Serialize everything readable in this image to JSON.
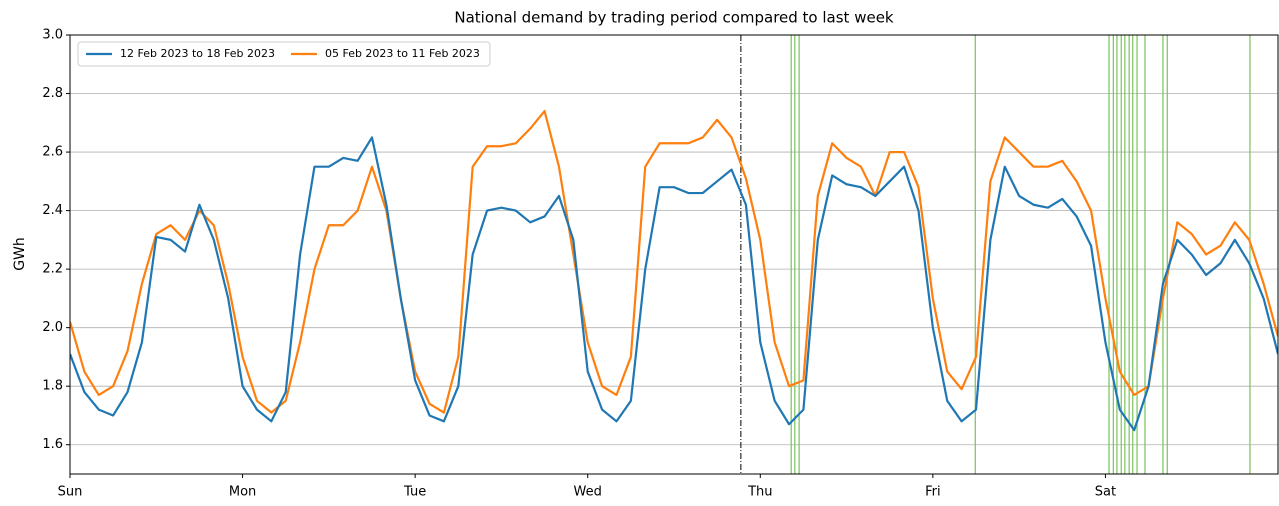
{
  "chart_data": {
    "type": "line",
    "title": "National demand by trading period compared to last week",
    "y_label": "GWh",
    "xlim": [
      0,
      168
    ],
    "xticks": [
      {
        "value": 0,
        "label": "Sun"
      },
      {
        "value": 24,
        "label": "Mon"
      },
      {
        "value": 48,
        "label": "Tue"
      },
      {
        "value": 72,
        "label": "Wed"
      },
      {
        "value": 96,
        "label": "Thu"
      },
      {
        "value": 120,
        "label": "Fri"
      },
      {
        "value": 144,
        "label": "Sat"
      }
    ],
    "ylim": [
      1.5,
      3.0
    ],
    "yticks": [
      1.6,
      1.8,
      {
        "value": 2.0,
        "label": "2.0"
      },
      2.2,
      2.4,
      2.6,
      2.8,
      {
        "value": 3.0,
        "label": "3.0"
      }
    ],
    "grid": true,
    "legend": "upper left",
    "x": [
      0,
      2,
      4,
      6,
      8,
      10,
      12,
      14,
      16,
      18,
      20,
      22,
      24,
      26,
      28,
      30,
      32,
      34,
      36,
      38,
      40,
      42,
      44,
      46,
      48,
      50,
      52,
      54,
      56,
      58,
      60,
      62,
      64,
      66,
      68,
      70,
      72,
      74,
      76,
      78,
      80,
      82,
      84,
      86,
      88,
      90,
      92,
      94,
      96,
      98,
      100,
      102,
      104,
      106,
      108,
      110,
      112,
      114,
      116,
      118,
      120,
      122,
      124,
      126,
      128,
      130,
      132,
      134,
      136,
      138,
      140,
      142,
      144,
      146,
      148,
      150,
      152,
      154,
      156,
      158,
      160,
      162,
      164,
      166,
      168
    ],
    "series": [
      {
        "name": "12 Feb 2023 to 18 Feb 2023",
        "color": "#1f77b4",
        "values": [
          1.91,
          1.78,
          1.72,
          1.7,
          1.78,
          1.95,
          2.31,
          2.3,
          2.26,
          2.42,
          2.3,
          2.1,
          1.8,
          1.72,
          1.68,
          1.78,
          2.25,
          2.55,
          2.55,
          2.58,
          2.57,
          2.65,
          2.42,
          2.1,
          1.82,
          1.7,
          1.68,
          1.8,
          2.25,
          2.4,
          2.41,
          2.4,
          2.36,
          2.38,
          2.45,
          2.3,
          1.85,
          1.72,
          1.68,
          1.75,
          2.2,
          2.48,
          2.48,
          2.46,
          2.46,
          2.5,
          2.54,
          2.42,
          1.95,
          1.75,
          1.67,
          1.72,
          2.3,
          2.52,
          2.49,
          2.48,
          2.45,
          2.5,
          2.55,
          2.4,
          2.0,
          1.75,
          1.68,
          1.72,
          2.3,
          2.55,
          2.45,
          2.42,
          2.41,
          2.44,
          2.38,
          2.28,
          1.95,
          1.72,
          1.65,
          1.8,
          2.15,
          2.3,
          2.25,
          2.18,
          2.22,
          2.3,
          2.22,
          2.1,
          1.91
        ]
      },
      {
        "name": "05 Feb 2023 to 11 Feb 2023",
        "color": "#ff7f0e",
        "values": [
          2.02,
          1.85,
          1.77,
          1.8,
          1.92,
          2.15,
          2.32,
          2.35,
          2.3,
          2.4,
          2.35,
          2.15,
          1.9,
          1.75,
          1.71,
          1.75,
          1.95,
          2.2,
          2.35,
          2.35,
          2.4,
          2.55,
          2.4,
          2.1,
          1.85,
          1.74,
          1.71,
          1.9,
          2.55,
          2.62,
          2.62,
          2.63,
          2.68,
          2.74,
          2.55,
          2.25,
          1.95,
          1.8,
          1.77,
          1.9,
          2.55,
          2.63,
          2.63,
          2.63,
          2.65,
          2.71,
          2.65,
          2.51,
          2.3,
          1.95,
          1.8,
          1.82,
          2.45,
          2.63,
          2.58,
          2.55,
          2.45,
          2.6,
          2.6,
          2.48,
          2.1,
          1.85,
          1.79,
          1.9,
          2.5,
          2.65,
          2.6,
          2.55,
          2.55,
          2.57,
          2.5,
          2.4,
          2.1,
          1.85,
          1.77,
          1.8,
          2.1,
          2.36,
          2.32,
          2.25,
          2.28,
          2.36,
          2.3,
          2.15,
          1.97
        ]
      }
    ],
    "now_line": {
      "x": 93.3,
      "color": "#000000"
    },
    "event_lines": {
      "color": "#77c35a",
      "x": [
        100.3,
        100.8,
        101.4,
        125.9,
        144.5,
        145.1,
        145.6,
        146.2,
        146.7,
        147.3,
        147.8,
        148.4,
        149.5,
        152.0,
        152.6,
        164.1
      ]
    }
  }
}
